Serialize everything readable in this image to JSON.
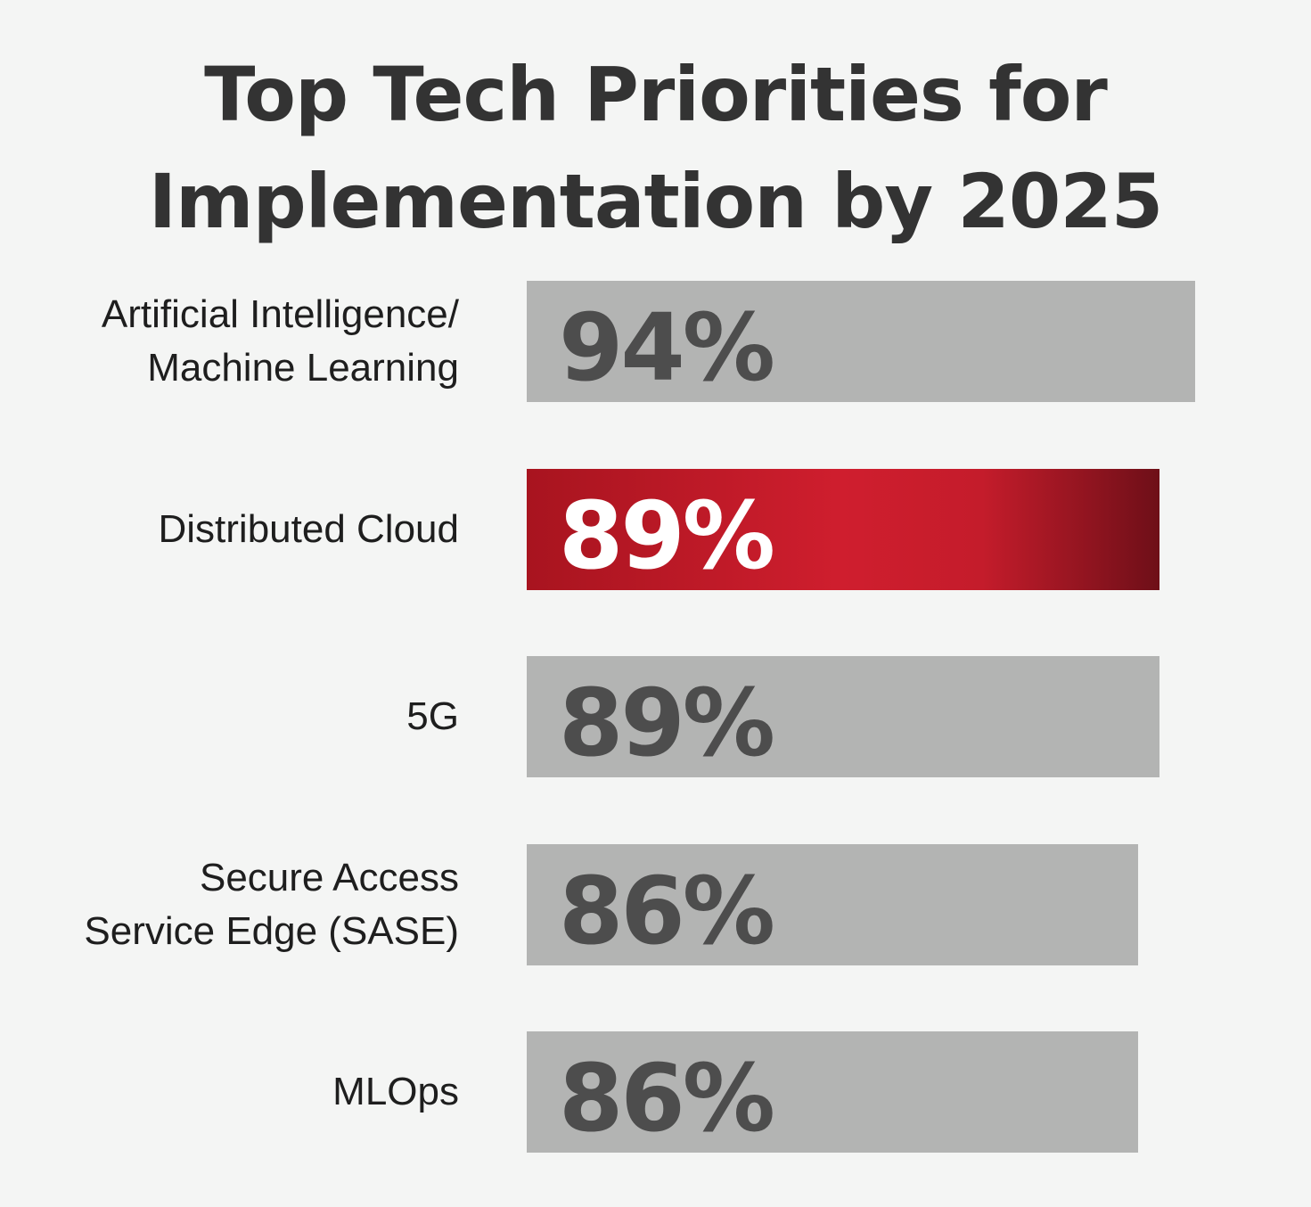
{
  "chart_data": {
    "type": "bar",
    "orientation": "horizontal",
    "title_lines": [
      "Top Tech Priorities for",
      "Implementation by 2025"
    ],
    "categories": [
      "Artificial Intelligence/\nMachine Learning",
      "Distributed Cloud",
      "5G",
      "Secure Access\nService Edge (SASE)",
      "MLOps"
    ],
    "values": [
      94,
      89,
      89,
      86,
      86
    ],
    "value_labels": [
      "94%",
      "89%",
      "89%",
      "86%",
      "86%"
    ],
    "highlight_index": 1,
    "xlim": [
      0,
      100
    ],
    "grid": false,
    "legend": "none",
    "colors": {
      "bar": "#b3b4b3",
      "highlight_start": "#a8141f",
      "highlight_mid": "#cf1e2e",
      "highlight_end": "#6e0f18",
      "value_text": "#4d4d4d",
      "highlight_value_text": "#ffffff",
      "title_text": "#333333",
      "label_text": "#1e1e1e",
      "background": "#f4f5f4"
    }
  }
}
